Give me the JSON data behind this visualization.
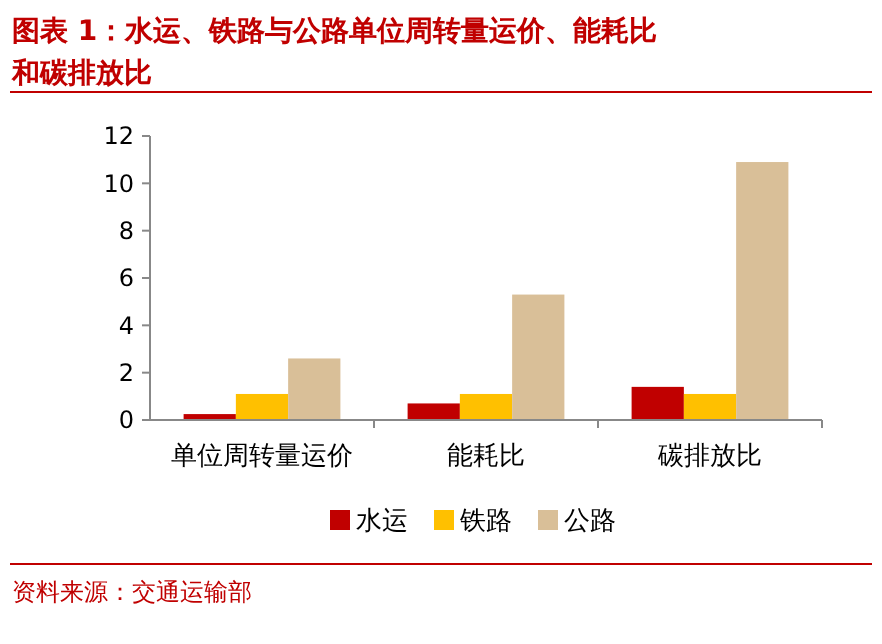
{
  "chart_data": {
    "type": "bar",
    "title": "图表 1：水运、铁路与公路单位周转量运价、能耗比和碳排放比",
    "categories": [
      "单位周转量运价",
      "能耗比",
      "碳排放比"
    ],
    "series": [
      {
        "name": "水运",
        "color": "#c00000",
        "values": [
          0.25,
          0.7,
          1.4
        ]
      },
      {
        "name": "铁路",
        "color": "#ffc000",
        "values": [
          1.1,
          1.1,
          1.1
        ]
      },
      {
        "name": "公路",
        "color": "#d9bf98",
        "values": [
          2.6,
          5.3,
          10.9
        ]
      }
    ],
    "ylim": [
      0,
      12
    ],
    "yticks": [
      0,
      2,
      4,
      6,
      8,
      10,
      12
    ],
    "grid": false,
    "legend": "bottom",
    "annotations": [
      "资料来源：交通运输部"
    ]
  }
}
